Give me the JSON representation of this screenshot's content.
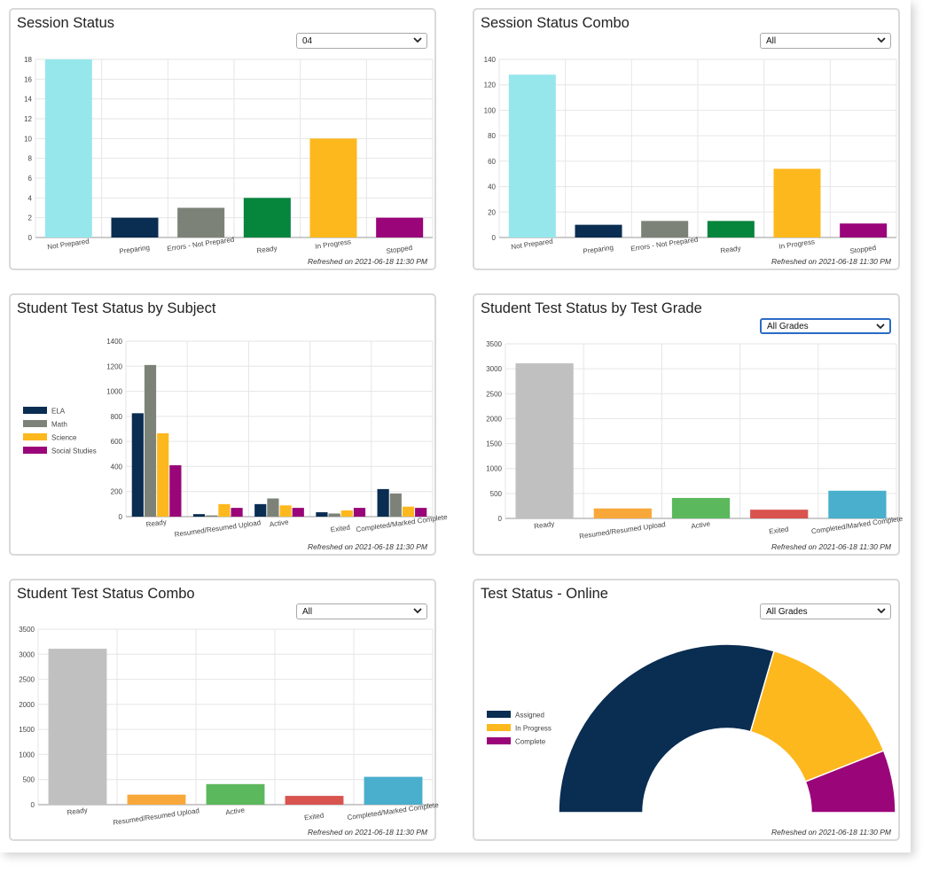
{
  "refreshed": "Refreshed on 2021-06-18 11:30 PM",
  "panels": {
    "p1": {
      "title": "Session Status",
      "select": "04"
    },
    "p2": {
      "title": "Session Status Combo",
      "select": "All"
    },
    "p3": {
      "title": "Student Test Status by Subject"
    },
    "p4": {
      "title": "Student Test Status by Test Grade",
      "select": "All Grades"
    },
    "p5": {
      "title": "Student Test Status Combo",
      "select": "All"
    },
    "p6": {
      "title": "Test Status - Online",
      "select": "All Grades"
    }
  },
  "colors": {
    "grid": "#e6e6e6",
    "axis": "#999999",
    "text": "#444444"
  },
  "chart_data": [
    {
      "id": "p1",
      "type": "bar",
      "categories": [
        "Not Prepared",
        "Preparing",
        "Errors - Not Prepared",
        "Ready",
        "In Progress",
        "Stopped"
      ],
      "values": [
        18,
        2,
        3,
        4,
        10,
        2
      ],
      "colors": [
        "#96e7ec",
        "#0a2d52",
        "#7c8277",
        "#06853c",
        "#fdb81e",
        "#9a0579"
      ],
      "yticks": [
        0,
        2,
        4,
        6,
        8,
        10,
        12,
        14,
        16,
        18
      ],
      "ylim": [
        0,
        18
      ],
      "grid": true
    },
    {
      "id": "p2",
      "type": "bar",
      "categories": [
        "Not Prepared",
        "Preparing",
        "Errors - Not Prepared",
        "Ready",
        "In Progress",
        "Stopped"
      ],
      "values": [
        128,
        10,
        13,
        13,
        54,
        11
      ],
      "colors": [
        "#96e7ec",
        "#0a2d52",
        "#7c8277",
        "#06853c",
        "#fdb81e",
        "#9a0579"
      ],
      "yticks": [
        0,
        20,
        40,
        60,
        80,
        100,
        120,
        140
      ],
      "ylim": [
        0,
        140
      ],
      "grid": true
    },
    {
      "id": "p3",
      "type": "bar",
      "categories": [
        "Ready",
        "Resumed/Resumed Upload",
        "Active",
        "Exited",
        "Completed/Marked Complete"
      ],
      "series": [
        {
          "name": "ELA",
          "color": "#0a2d52",
          "values": [
            825,
            20,
            100,
            35,
            220
          ]
        },
        {
          "name": "Math",
          "color": "#7c8277",
          "values": [
            1210,
            10,
            145,
            25,
            185
          ]
        },
        {
          "name": "Science",
          "color": "#fdb81e",
          "values": [
            665,
            100,
            90,
            50,
            80
          ]
        },
        {
          "name": "Social Studies",
          "color": "#9a0579",
          "values": [
            410,
            70,
            70,
            70,
            70
          ]
        }
      ],
      "yticks": [
        0,
        200,
        400,
        600,
        800,
        1000,
        1200,
        1400
      ],
      "ylim": [
        0,
        1400
      ],
      "legend": "left",
      "grid": true
    },
    {
      "id": "p4",
      "type": "bar",
      "categories": [
        "Ready",
        "Resumed/Resumed Upload",
        "Active",
        "Exited",
        "Completed/Marked Complete"
      ],
      "values": [
        3110,
        200,
        410,
        175,
        555
      ],
      "colors": [
        "#c0c0c0",
        "#f8a83a",
        "#5cb85c",
        "#d9534f",
        "#4aaecd"
      ],
      "yticks": [
        0,
        500,
        1000,
        1500,
        2000,
        2500,
        3000,
        3500
      ],
      "ylim": [
        0,
        3500
      ],
      "grid": true
    },
    {
      "id": "p5",
      "type": "bar",
      "categories": [
        "Ready",
        "Resumed/Resumed Upload",
        "Active",
        "Exited",
        "Completed/Marked Complete"
      ],
      "values": [
        3110,
        200,
        410,
        175,
        555
      ],
      "colors": [
        "#c0c0c0",
        "#f8a83a",
        "#5cb85c",
        "#d9534f",
        "#4aaecd"
      ],
      "yticks": [
        0,
        500,
        1000,
        1500,
        2000,
        2500,
        3000,
        3500
      ],
      "ylim": [
        0,
        3500
      ],
      "grid": true
    },
    {
      "id": "p6",
      "type": "pie",
      "variant": "half-donut",
      "series": [
        {
          "name": "Assigned",
          "color": "#0a2d52",
          "value": 59
        },
        {
          "name": "In Progress",
          "color": "#fdb81e",
          "value": 29
        },
        {
          "name": "Complete",
          "color": "#9a0579",
          "value": 12
        }
      ],
      "legend": "left"
    }
  ]
}
